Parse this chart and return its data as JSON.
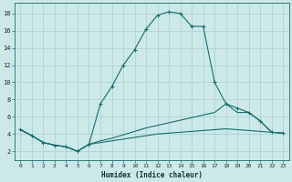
{
  "xlabel": "Humidex (Indice chaleur)",
  "background_color": "#cce8e8",
  "grid_color": "#aacfcf",
  "line_color": "#1a6e6e",
  "xlim": [
    -0.5,
    23.5
  ],
  "ylim": [
    1.0,
    19.2
  ],
  "xticks": [
    0,
    1,
    2,
    3,
    4,
    5,
    6,
    7,
    8,
    9,
    10,
    11,
    12,
    13,
    14,
    15,
    16,
    17,
    18,
    19,
    20,
    21,
    22,
    23
  ],
  "yticks": [
    2,
    4,
    6,
    8,
    10,
    12,
    14,
    16,
    18
  ],
  "curve1_x": [
    0,
    1,
    2,
    3,
    4,
    5,
    6,
    7,
    8,
    9,
    10,
    11,
    12,
    13,
    14,
    15,
    16,
    17,
    18,
    19,
    20,
    21,
    22,
    23
  ],
  "curve1_y": [
    4.5,
    3.8,
    3.0,
    2.7,
    2.5,
    2.0,
    2.8,
    7.5,
    9.5,
    12.0,
    13.8,
    16.2,
    17.8,
    18.2,
    18.0,
    16.5,
    16.5,
    10.0,
    7.5,
    7.0,
    6.5,
    5.5,
    4.2,
    4.1
  ],
  "curve2_x": [
    0,
    1,
    2,
    3,
    4,
    5,
    6,
    7,
    8,
    9,
    10,
    11,
    12,
    13,
    14,
    15,
    16,
    17,
    18,
    19,
    20,
    21,
    22,
    23
  ],
  "curve2_y": [
    4.5,
    3.8,
    3.0,
    2.7,
    2.5,
    2.0,
    2.8,
    3.2,
    3.5,
    3.9,
    4.3,
    4.7,
    5.0,
    5.3,
    5.6,
    5.9,
    6.2,
    6.5,
    7.5,
    6.5,
    6.5,
    5.5,
    4.2,
    4.1
  ],
  "curve3_x": [
    0,
    1,
    2,
    3,
    4,
    5,
    6,
    7,
    8,
    9,
    10,
    11,
    12,
    13,
    14,
    15,
    16,
    17,
    18,
    19,
    20,
    21,
    22,
    23
  ],
  "curve3_y": [
    4.5,
    3.8,
    3.0,
    2.7,
    2.5,
    2.0,
    2.8,
    3.0,
    3.2,
    3.4,
    3.6,
    3.8,
    4.0,
    4.1,
    4.2,
    4.3,
    4.4,
    4.5,
    4.6,
    4.5,
    4.4,
    4.3,
    4.2,
    4.1
  ]
}
